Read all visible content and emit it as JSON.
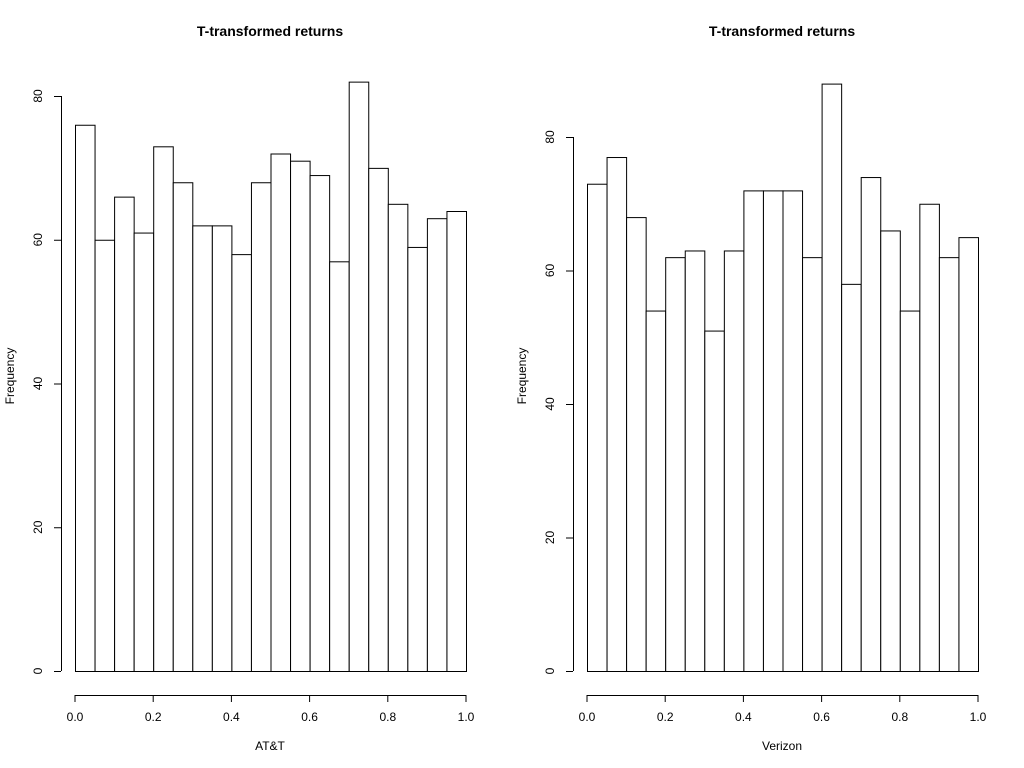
{
  "chart_data": [
    {
      "type": "bar",
      "title": "T-transformed returns",
      "xlabel": "AT&T",
      "ylabel": "Frequency",
      "xlim": [
        0,
        1
      ],
      "ylim": [
        0,
        80
      ],
      "xticks": [
        "0.0",
        "0.2",
        "0.4",
        "0.6",
        "0.8",
        "1.0"
      ],
      "yticks": [
        "0",
        "20",
        "40",
        "60",
        "80"
      ],
      "bin_width": 0.05,
      "values": [
        76,
        60,
        66,
        61,
        73,
        68,
        62,
        62,
        58,
        68,
        72,
        71,
        69,
        57,
        82,
        70,
        65,
        59,
        63,
        64
      ],
      "grid": false,
      "legend": "none"
    },
    {
      "type": "bar",
      "title": "T-transformed returns",
      "xlabel": "Verizon",
      "ylabel": "Frequency",
      "xlim": [
        0,
        1
      ],
      "ylim": [
        0,
        80
      ],
      "xticks": [
        "0.0",
        "0.2",
        "0.4",
        "0.6",
        "0.8",
        "1.0"
      ],
      "yticks": [
        "0",
        "20",
        "40",
        "60",
        "80"
      ],
      "bin_width": 0.05,
      "values": [
        73,
        77,
        68,
        54,
        62,
        63,
        51,
        63,
        72,
        72,
        72,
        62,
        88,
        58,
        74,
        66,
        54,
        70,
        62,
        65
      ],
      "grid": false,
      "legend": "none"
    }
  ]
}
